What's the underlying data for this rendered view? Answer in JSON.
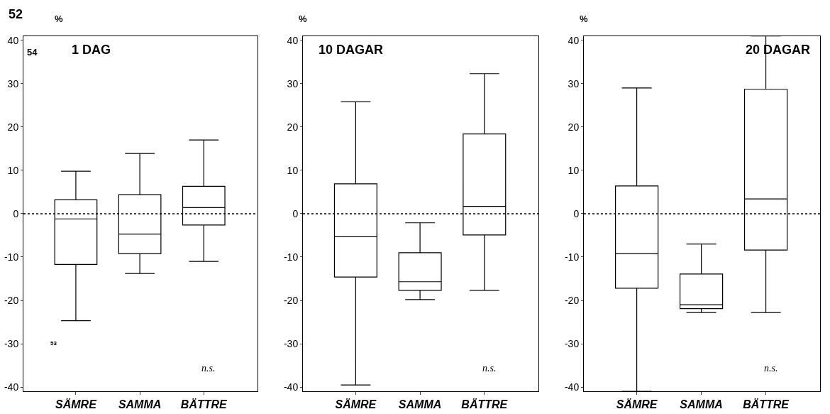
{
  "chart_data": [
    {
      "type": "box",
      "title": "1 DAG",
      "ylabel": "%",
      "categories": [
        "SÄMRE",
        "SAMMA",
        "BÄTTRE"
      ],
      "ylim": [
        -41,
        41
      ],
      "yticks": [
        -40,
        -30,
        -20,
        -10,
        0,
        10,
        20,
        30,
        40
      ],
      "boxes": [
        {
          "low": -24.7,
          "q1": -11.7,
          "median": -1.2,
          "q3": 3.2,
          "high": 9.8
        },
        {
          "low": -13.8,
          "q1": -9.2,
          "median": -4.7,
          "q3": 4.4,
          "high": 13.9
        },
        {
          "low": -11,
          "q1": -2.6,
          "median": 1.4,
          "q3": 6.3,
          "high": 17
        }
      ],
      "ref_lines": [
        {
          "axis": "y",
          "value": 0,
          "line_style": "dotted"
        }
      ],
      "annotations": [
        "52",
        "54",
        "53",
        "n.s."
      ]
    },
    {
      "type": "box",
      "title": "10 DAGAR",
      "ylabel": "%",
      "categories": [
        "SÄMRE",
        "SAMMA",
        "BÄTTRE"
      ],
      "ylim": [
        -41,
        41
      ],
      "yticks": [
        -40,
        -30,
        -20,
        -10,
        0,
        10,
        20,
        30,
        40
      ],
      "boxes": [
        {
          "low": -39.5,
          "q1": -14.6,
          "median": -5.3,
          "q3": 6.9,
          "high": 25.8
        },
        {
          "low": -19.8,
          "q1": -17.7,
          "median": -15.7,
          "q3": -9,
          "high": -2.1
        },
        {
          "low": -17.7,
          "q1": -4.9,
          "median": 1.7,
          "q3": 18.4,
          "high": 32.3
        }
      ],
      "ref_lines": [
        {
          "axis": "y",
          "value": 0,
          "line_style": "dotted"
        }
      ],
      "annotations": [
        "n.s."
      ]
    },
    {
      "type": "box",
      "title": "20 DAGAR",
      "ylabel": "%",
      "categories": [
        "SÄMRE",
        "SAMMA",
        "BÄTTRE"
      ],
      "ylim": [
        -41,
        41
      ],
      "yticks": [
        -40,
        -30,
        -20,
        -10,
        0,
        10,
        20,
        30,
        40
      ],
      "boxes": [
        {
          "low": -41,
          "q1": -17.2,
          "median": -9.2,
          "q3": 6.4,
          "high": 29
        },
        {
          "low": -22.8,
          "q1": -21.9,
          "median": -21,
          "q3": -13.9,
          "high": -7
        },
        {
          "low": -22.8,
          "q1": -8.4,
          "median": 3.4,
          "q3": 28.7,
          "high": 41
        }
      ],
      "ref_lines": [
        {
          "axis": "y",
          "value": 0,
          "line_style": "dotted"
        }
      ],
      "annotations": [
        "n.s."
      ]
    }
  ]
}
